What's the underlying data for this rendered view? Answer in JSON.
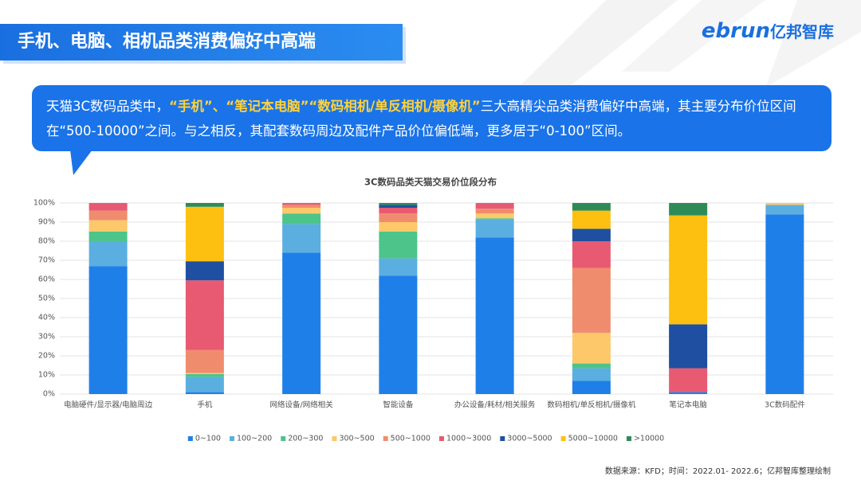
{
  "header": {
    "title": "手机、电脑、相机品类消费偏好中高端",
    "logo_en": "ebrun",
    "logo_cn": "亿邦智库"
  },
  "callout": {
    "segments": [
      {
        "text": "天猫3C数码品类中，",
        "highlight": false
      },
      {
        "text": "“手机”、“笔记本电脑”“数码相机/单反相机/摄像机”",
        "highlight": true
      },
      {
        "text": "三大高精尖品类消费偏好中高端，其主要分布价位区间在“500-10000”之间。与之相反，其配套数码周边及配件产品价位偏低端，更多居于“0-100”区间。",
        "highlight": false
      }
    ]
  },
  "chart_data": {
    "type": "stacked_bar",
    "title": "3C数码品类天猫交易价位段分布",
    "categories": [
      "电脑硬件/显示器/电脑周边",
      "手机",
      "网络设备/网络相关",
      "智能设备",
      "办公设备/耗材/相关服务",
      "数码相机/单反相机/摄像机",
      "笔记本电脑",
      "3C数码配件"
    ],
    "series": [
      {
        "name": "0~100",
        "color": "#1f7fe8",
        "values": [
          67,
          1,
          74,
          62,
          82,
          7,
          1,
          94
        ]
      },
      {
        "name": "100~200",
        "color": "#5aafe0",
        "values": [
          13,
          8,
          15,
          9,
          9.5,
          6.5,
          0,
          5
        ]
      },
      {
        "name": "200~300",
        "color": "#4dc48a",
        "values": [
          5,
          1.5,
          5.5,
          14,
          0.5,
          2.5,
          0,
          0
        ]
      },
      {
        "name": "300~500",
        "color": "#fdc86a",
        "values": [
          6,
          0.5,
          3,
          5,
          2.5,
          16,
          0,
          1
        ]
      },
      {
        "name": "500~1000",
        "color": "#f08c6e",
        "values": [
          5,
          12,
          1.5,
          4.5,
          2.5,
          34,
          0,
          0
        ]
      },
      {
        "name": "1000~3000",
        "color": "#e85a72",
        "values": [
          4,
          36.5,
          1,
          3,
          3,
          14,
          12.5,
          0
        ]
      },
      {
        "name": "3000~5000",
        "color": "#1f4fa0",
        "values": [
          0,
          10,
          0,
          1.5,
          0,
          6.5,
          23,
          0
        ]
      },
      {
        "name": "5000~10000",
        "color": "#fdc010",
        "values": [
          0,
          28.5,
          0,
          0,
          0,
          9.5,
          57,
          0
        ]
      },
      {
        "name": ">10000",
        "color": "#2e8b57",
        "values": [
          0,
          2,
          0,
          1,
          0,
          4,
          6.5,
          0
        ]
      }
    ],
    "ylim": [
      0,
      100
    ],
    "yticks": [
      {
        "value": 0,
        "label": "0%"
      },
      {
        "value": 10,
        "label": "10%"
      },
      {
        "value": 20,
        "label": "20%"
      },
      {
        "value": 30,
        "label": "30%"
      },
      {
        "value": 40,
        "label": "40%"
      },
      {
        "value": 50,
        "label": "50%"
      },
      {
        "value": 60,
        "label": "60%"
      },
      {
        "value": 70,
        "label": "70%"
      },
      {
        "value": 80,
        "label": "80%"
      },
      {
        "value": 90,
        "label": "90%"
      },
      {
        "value": 100,
        "label": "100%"
      }
    ],
    "grid": true
  },
  "source": "数据来源：KFD；时间：2022.01- 2022.6；亿邦智库整理绘制"
}
